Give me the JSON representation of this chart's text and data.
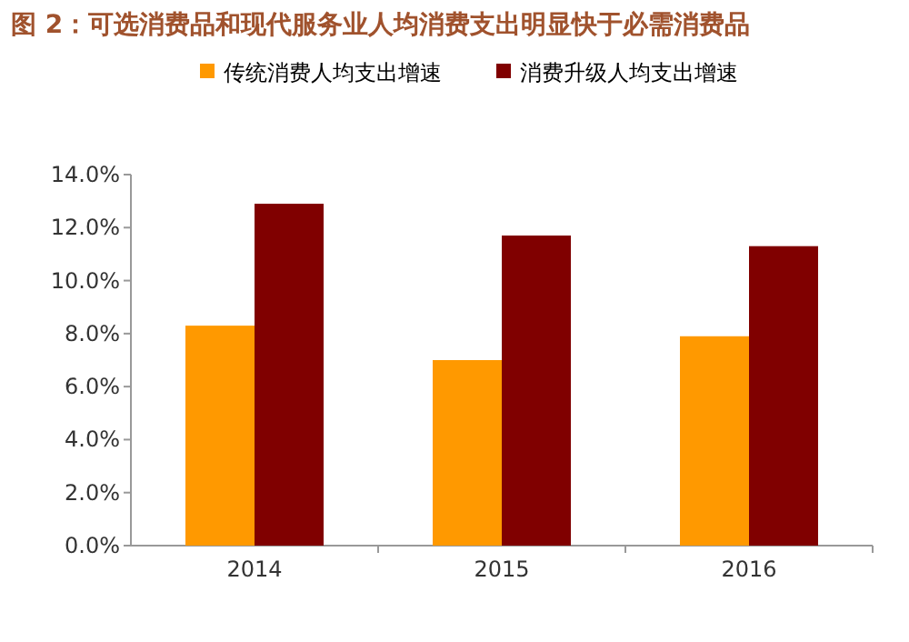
{
  "chart_data": {
    "type": "bar",
    "title": "图 2：可选消费品和现代服务业人均消费支出明显快于必需消费品",
    "categories": [
      "2014",
      "2015",
      "2016"
    ],
    "series": [
      {
        "name": "传统消费人均支出增速",
        "color": "#ff9900",
        "values": [
          8.3,
          7.0,
          7.9
        ]
      },
      {
        "name": "消费升级人均支出增速",
        "color": "#800000",
        "values": [
          12.9,
          11.7,
          11.3
        ]
      }
    ],
    "ylim": [
      0,
      14
    ],
    "yticks": [
      {
        "value": 0,
        "label": "0.0%"
      },
      {
        "value": 2,
        "label": "2.0%"
      },
      {
        "value": 4,
        "label": "4.0%"
      },
      {
        "value": 6,
        "label": "6.0%"
      },
      {
        "value": 8,
        "label": "8.0%"
      },
      {
        "value": 10,
        "label": "10.0%"
      },
      {
        "value": 12,
        "label": "12.0%"
      },
      {
        "value": 14,
        "label": "14.0%"
      }
    ],
    "legend": "top"
  }
}
